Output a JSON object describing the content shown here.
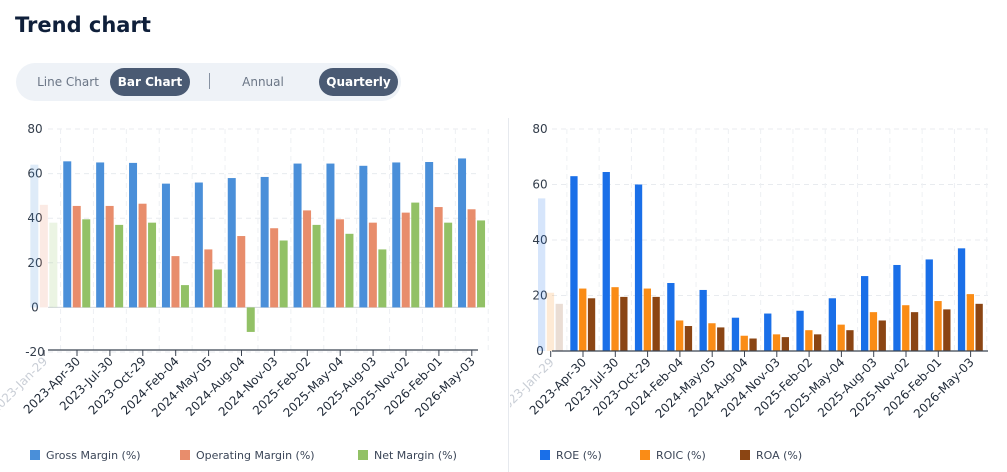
{
  "page": {
    "title": "Trend chart"
  },
  "toggles": {
    "line_chart": "Line Chart",
    "bar_chart": "Bar Chart",
    "annual": "Annual",
    "quarterly": "Quarterly"
  },
  "chart_data": [
    {
      "type": "bar",
      "categories": [
        "2023-Jan-29",
        "2023-Apr-30",
        "2023-Jul-30",
        "2023-Oct-29",
        "2024-Feb-04",
        "2024-May-05",
        "2024-Aug-04",
        "2024-Nov-03",
        "2025-Feb-02",
        "2025-May-04",
        "2025-Aug-03",
        "2025-Nov-02",
        "2026-Feb-01",
        "2026-May-03"
      ],
      "faded_categories": [
        "2023-Jan-29"
      ],
      "ylim": [
        -20,
        80
      ],
      "yticks": [
        -20,
        0,
        20,
        40,
        60,
        80
      ],
      "legend_position": "bottom",
      "grid": true,
      "series": [
        {
          "name": "Gross Margin (%)",
          "color": "#4a8fd9",
          "values": [
            64,
            65.5,
            65,
            64.8,
            55.5,
            56,
            58,
            58.5,
            64.5,
            64.5,
            63.5,
            65,
            65.2,
            66.8
          ]
        },
        {
          "name": "Operating Margin (%)",
          "color": "#e88d6c",
          "values": [
            46,
            45.5,
            45.5,
            46.5,
            23,
            26,
            32,
            35.5,
            43.5,
            39.5,
            38,
            42.5,
            45,
            44
          ]
        },
        {
          "name": "Net Margin (%)",
          "color": "#92c166",
          "values": [
            38,
            39.5,
            37,
            38,
            10,
            17,
            -11,
            30,
            37,
            33,
            26,
            47,
            38,
            39
          ]
        }
      ]
    },
    {
      "type": "bar",
      "categories": [
        "2023-Jan-29",
        "2023-Apr-30",
        "2023-Jul-30",
        "2023-Oct-29",
        "2024-Feb-04",
        "2024-May-05",
        "2024-Aug-04",
        "2024-Nov-03",
        "2025-Feb-02",
        "2025-May-04",
        "2025-Aug-03",
        "2025-Nov-02",
        "2026-Feb-01",
        "2026-May-03"
      ],
      "faded_categories": [
        "2023-Jan-29"
      ],
      "ylim": [
        0,
        80
      ],
      "yticks": [
        0,
        20,
        40,
        60,
        80
      ],
      "legend_position": "bottom",
      "grid": true,
      "series": [
        {
          "name": "ROE (%)",
          "color": "#1a6fe8",
          "values": [
            55,
            63,
            64.5,
            60,
            24.5,
            22,
            12,
            13.5,
            14.5,
            19,
            27,
            31,
            33,
            37
          ]
        },
        {
          "name": "ROIC (%)",
          "color": "#fa8c16",
          "values": [
            21,
            22.5,
            23,
            22.5,
            11,
            10,
            5.5,
            6,
            7.5,
            9.5,
            14,
            16.5,
            18,
            20.5
          ]
        },
        {
          "name": "ROA (%)",
          "color": "#8b4513",
          "values": [
            17,
            19,
            19.5,
            19.5,
            9,
            8.5,
            4.5,
            5,
            6,
            7.5,
            11,
            14,
            15,
            17
          ]
        }
      ]
    }
  ]
}
